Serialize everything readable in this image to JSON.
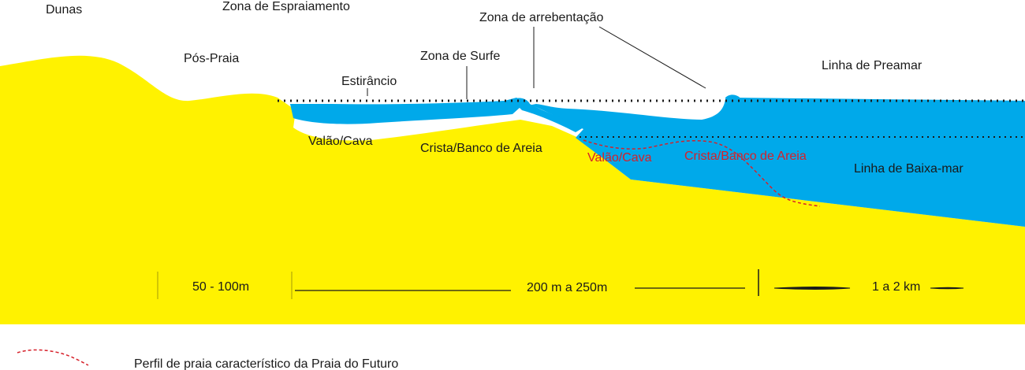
{
  "colors": {
    "sand": "#fff200",
    "water": "#00a9ea",
    "profile": "#d6202a",
    "line": "#1a1a1a"
  },
  "labels": {
    "dunas": "Dunas",
    "zona_espraiamento": "Zona de Espraiamento",
    "zona_arrebentacao": "Zona de arrebentação",
    "pos_praia": "Pós-Praia",
    "zona_surfe": "Zona de Surfe",
    "estirancio": "Estirâncio",
    "linha_preamar": "Linha de Preamar",
    "valao_cava": "Valão/Cava",
    "crista_banco": "Crista/Banco de Areia",
    "linha_baixamar": "Linha de Baixa-mar",
    "future_valao_cava": "Valão/Cava",
    "future_crista_banco": "Crista/Banco de Areia"
  },
  "scale": {
    "segment_1": "50 - 100m",
    "segment_2": "200 m a 250m",
    "segment_3": "1 a 2 km"
  },
  "legend": {
    "profile_label": "Perfil de praia característico da Praia do Futuro"
  }
}
